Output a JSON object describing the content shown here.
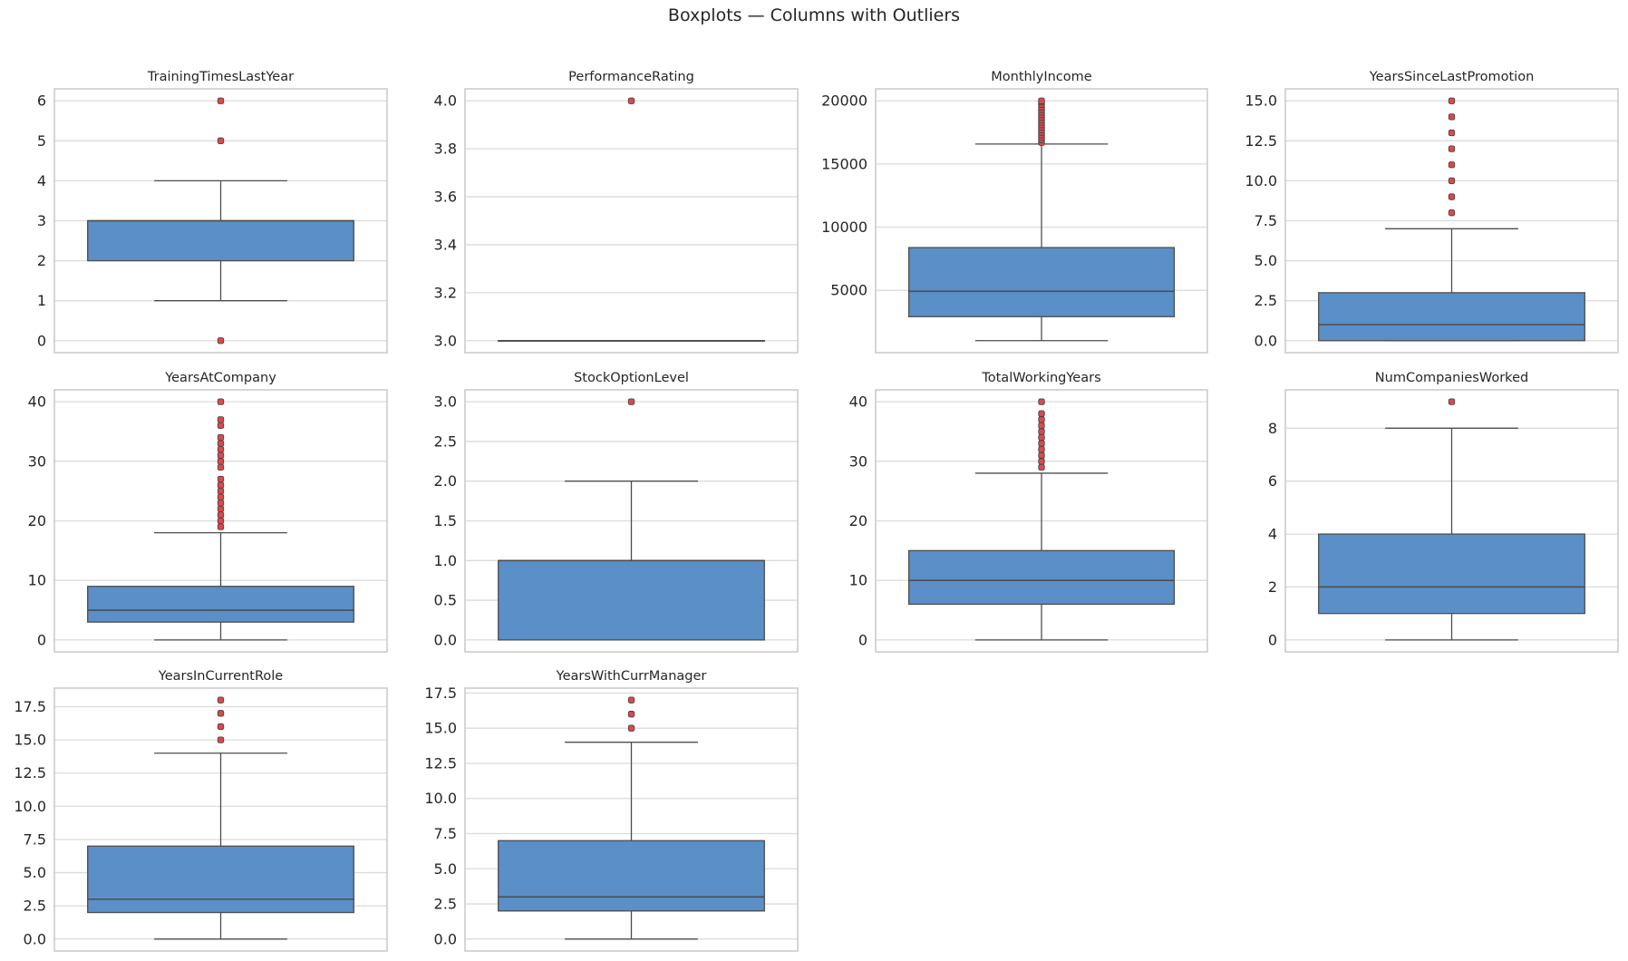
{
  "chart_data": {
    "type": "boxplot",
    "title": "Boxplots — Columns with Outliers",
    "colors": {
      "box": "#5b8fc7",
      "line": "#4d4d4d",
      "outlier": "#e0474c",
      "grid": "#dcdcdc",
      "spine": "#cccccc"
    },
    "grid": true,
    "panels": [
      {
        "title": "TrainingTimesLastYear",
        "ylim": [
          -0.3,
          6.3
        ],
        "ticks": [
          0,
          1,
          2,
          3,
          4,
          5,
          6
        ],
        "tick_labels": [
          "0",
          "1",
          "2",
          "3",
          "4",
          "5",
          "6"
        ],
        "whisker_low": 1,
        "q1": 2,
        "median": 3,
        "q3": 3,
        "whisker_high": 4,
        "outliers": [
          0,
          5,
          6
        ]
      },
      {
        "title": "PerformanceRating",
        "ylim": [
          2.95,
          4.05
        ],
        "ticks": [
          3.0,
          3.2,
          3.4,
          3.6,
          3.8,
          4.0
        ],
        "tick_labels": [
          "3.0",
          "3.2",
          "3.4",
          "3.6",
          "3.8",
          "4.0"
        ],
        "whisker_low": 3,
        "q1": 3,
        "median": 3,
        "q3": 3,
        "whisker_high": 3,
        "outliers": [
          4
        ]
      },
      {
        "title": "MonthlyIncome",
        "ylim": [
          59,
          20949
        ],
        "ticks": [
          5000,
          10000,
          15000,
          20000
        ],
        "tick_labels": [
          "5000",
          "10000",
          "15000",
          "20000"
        ],
        "whisker_low": 1009,
        "q1": 2911,
        "median": 4919,
        "q3": 8379,
        "whisker_high": 16581,
        "outliers": [
          16700,
          16900,
          17100,
          17300,
          17500,
          17700,
          17900,
          18100,
          18300,
          18500,
          18700,
          18900,
          19100,
          19300,
          19500,
          19700,
          19900,
          19999
        ]
      },
      {
        "title": "YearsSinceLastPromotion",
        "ylim": [
          -0.75,
          15.75
        ],
        "ticks": [
          0,
          2.5,
          5,
          7.5,
          10,
          12.5,
          15
        ],
        "tick_labels": [
          "0.0",
          "2.5",
          "5.0",
          "7.5",
          "10.0",
          "12.5",
          "15.0"
        ],
        "whisker_low": 0,
        "q1": 0,
        "median": 1,
        "q3": 3,
        "whisker_high": 7,
        "outliers": [
          8,
          9,
          10,
          11,
          12,
          13,
          14,
          15
        ]
      },
      {
        "title": "YearsAtCompany",
        "ylim": [
          -2,
          42
        ],
        "ticks": [
          0,
          10,
          20,
          30,
          40
        ],
        "tick_labels": [
          "0",
          "10",
          "20",
          "30",
          "40"
        ],
        "whisker_low": 0,
        "q1": 3,
        "median": 5,
        "q3": 9,
        "whisker_high": 18,
        "outliers": [
          19,
          20,
          21,
          22,
          23,
          24,
          25,
          26,
          27,
          29,
          30,
          31,
          32,
          33,
          34,
          36,
          37,
          40
        ]
      },
      {
        "title": "StockOptionLevel",
        "ylim": [
          -0.15,
          3.15
        ],
        "ticks": [
          0,
          0.5,
          1,
          1.5,
          2,
          2.5,
          3
        ],
        "tick_labels": [
          "0.0",
          "0.5",
          "1.0",
          "1.5",
          "2.0",
          "2.5",
          "3.0"
        ],
        "whisker_low": 0,
        "q1": 0,
        "median": 1,
        "q3": 1,
        "whisker_high": 2,
        "outliers": [
          3
        ]
      },
      {
        "title": "TotalWorkingYears",
        "ylim": [
          -2,
          42
        ],
        "ticks": [
          0,
          10,
          20,
          30,
          40
        ],
        "tick_labels": [
          "0",
          "10",
          "20",
          "30",
          "40"
        ],
        "whisker_low": 0,
        "q1": 6,
        "median": 10,
        "q3": 15,
        "whisker_high": 28,
        "outliers": [
          29,
          30,
          31,
          32,
          33,
          34,
          35,
          36,
          37,
          38,
          40
        ]
      },
      {
        "title": "NumCompaniesWorked",
        "ylim": [
          -0.45,
          9.45
        ],
        "ticks": [
          0,
          2,
          4,
          6,
          8
        ],
        "tick_labels": [
          "0",
          "2",
          "4",
          "6",
          "8"
        ],
        "whisker_low": 0,
        "q1": 1,
        "median": 2,
        "q3": 4,
        "whisker_high": 8,
        "outliers": [
          9
        ]
      },
      {
        "title": "YearsInCurrentRole",
        "ylim": [
          -0.9,
          18.9
        ],
        "ticks": [
          0,
          2.5,
          5,
          7.5,
          10,
          12.5,
          15,
          17.5
        ],
        "tick_labels": [
          "0.0",
          "2.5",
          "5.0",
          "7.5",
          "10.0",
          "12.5",
          "15.0",
          "17.5"
        ],
        "whisker_low": 0,
        "q1": 2,
        "median": 3,
        "q3": 7,
        "whisker_high": 14,
        "outliers": [
          15,
          16,
          17,
          18
        ]
      },
      {
        "title": "YearsWithCurrManager",
        "ylim": [
          -0.85,
          17.85
        ],
        "ticks": [
          0,
          2.5,
          5,
          7.5,
          10,
          12.5,
          15,
          17.5
        ],
        "tick_labels": [
          "0.0",
          "2.5",
          "5.0",
          "7.5",
          "10.0",
          "12.5",
          "15.0",
          "17.5"
        ],
        "whisker_low": 0,
        "q1": 2,
        "median": 3,
        "q3": 7,
        "whisker_high": 14,
        "outliers": [
          15,
          16,
          17
        ]
      }
    ]
  }
}
